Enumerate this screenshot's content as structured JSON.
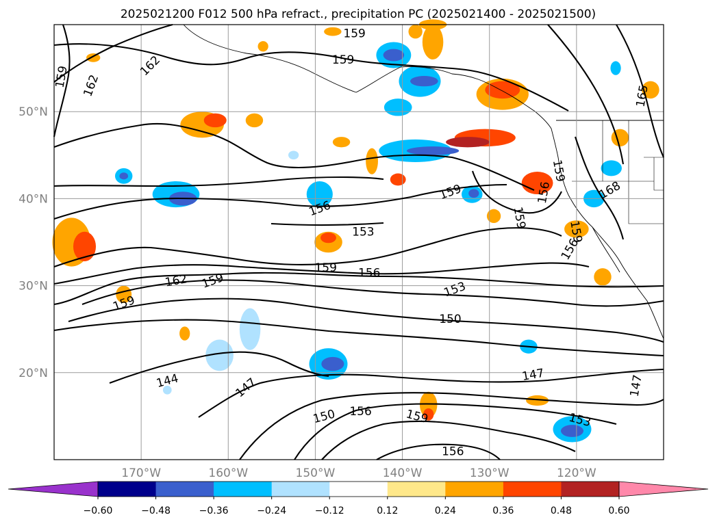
{
  "chart_data": {
    "type": "heatmap",
    "title": "2025021200 F012 500 hPa refract., precipitation PC (2025021400 - 2025021500)",
    "map": {
      "lon_range": [
        -180,
        -110
      ],
      "lat_range": [
        10,
        60
      ],
      "grid": true
    },
    "x_ticks": [
      {
        "value": -170,
        "label": "170°W"
      },
      {
        "value": -160,
        "label": "160°W"
      },
      {
        "value": -150,
        "label": "150°W"
      },
      {
        "value": -140,
        "label": "140°W"
      },
      {
        "value": -130,
        "label": "130°W"
      },
      {
        "value": -120,
        "label": "120°W"
      }
    ],
    "y_ticks": [
      {
        "value": 50,
        "label": "50°N"
      },
      {
        "value": 40,
        "label": "40°N"
      },
      {
        "value": 30,
        "label": "30°N"
      },
      {
        "value": 20,
        "label": "20°N"
      }
    ],
    "colorbar": {
      "orientation": "horizontal",
      "extend": "both",
      "boundaries": [
        -0.6,
        -0.48,
        -0.36,
        -0.24,
        -0.12,
        0.12,
        0.24,
        0.36,
        0.48,
        0.6
      ],
      "tick_labels": [
        "−0.60",
        "−0.48",
        "−0.36",
        "−0.24",
        "−0.12",
        "0.12",
        "0.24",
        "0.36",
        "0.48",
        "0.60"
      ],
      "colors": [
        "#9932cc",
        "#00008b",
        "#3a5fcd",
        "#00bfff",
        "#b0e2ff",
        "#ffffff",
        "#ffe88a",
        "#ffa500",
        "#ff4500",
        "#b22222",
        "#ff88aa"
      ]
    },
    "contour_levels": [
      144,
      147,
      150,
      153,
      156,
      159,
      162,
      165,
      168
    ],
    "contour_labels": [
      {
        "text": "159",
        "lon": -145.5,
        "lat": 59.0,
        "rot": 0
      },
      {
        "text": "159",
        "lon": -146.8,
        "lat": 56.0,
        "rot": 0
      },
      {
        "text": "162",
        "lon": -169.0,
        "lat": 55.3,
        "rot": -45
      },
      {
        "text": "162",
        "lon": -175.8,
        "lat": 53.0,
        "rot": -70
      },
      {
        "text": "159",
        "lon": -179.2,
        "lat": 54.0,
        "rot": -80
      },
      {
        "text": "165",
        "lon": -112.5,
        "lat": 51.8,
        "rot": -80
      },
      {
        "text": "159",
        "lon": -134.5,
        "lat": 40.8,
        "rot": -20
      },
      {
        "text": "156",
        "lon": -149.5,
        "lat": 38.9,
        "rot": -20
      },
      {
        "text": "153",
        "lon": -144.5,
        "lat": 36.2,
        "rot": 0
      },
      {
        "text": "159",
        "lon": -122.0,
        "lat": 43.2,
        "rot": 80
      },
      {
        "text": "156",
        "lon": -123.8,
        "lat": 40.7,
        "rot": -80
      },
      {
        "text": "159",
        "lon": -126.5,
        "lat": 37.8,
        "rot": 80
      },
      {
        "text": "168",
        "lon": -116.2,
        "lat": 41.0,
        "rot": -30
      },
      {
        "text": "159",
        "lon": -120.0,
        "lat": 36.2,
        "rot": 80
      },
      {
        "text": "156",
        "lon": -120.8,
        "lat": 34.2,
        "rot": -60
      },
      {
        "text": "159",
        "lon": -148.8,
        "lat": 32.1,
        "rot": 0
      },
      {
        "text": "156",
        "lon": -143.8,
        "lat": 31.5,
        "rot": 0
      },
      {
        "text": "162",
        "lon": -166.0,
        "lat": 30.6,
        "rot": -10
      },
      {
        "text": "159",
        "lon": -161.8,
        "lat": 30.6,
        "rot": -20
      },
      {
        "text": "159",
        "lon": -172.0,
        "lat": 28.0,
        "rot": -20
      },
      {
        "text": "153",
        "lon": -134.0,
        "lat": 29.6,
        "rot": -20
      },
      {
        "text": "150",
        "lon": -134.5,
        "lat": 26.2,
        "rot": 0
      },
      {
        "text": "144",
        "lon": -167.0,
        "lat": 19.1,
        "rot": -15
      },
      {
        "text": "147",
        "lon": -158.0,
        "lat": 18.3,
        "rot": -40
      },
      {
        "text": "147",
        "lon": -125.0,
        "lat": 19.8,
        "rot": -10
      },
      {
        "text": "147",
        "lon": -113.2,
        "lat": 18.5,
        "rot": -80
      },
      {
        "text": "150",
        "lon": -149.0,
        "lat": 15.0,
        "rot": -15
      },
      {
        "text": "156",
        "lon": -144.8,
        "lat": 15.6,
        "rot": 0
      },
      {
        "text": "159",
        "lon": -138.3,
        "lat": 15.0,
        "rot": 15
      },
      {
        "text": "153",
        "lon": -119.6,
        "lat": 14.6,
        "rot": 15
      },
      {
        "text": "156",
        "lon": -134.2,
        "lat": 11.0,
        "rot": 0
      }
    ]
  }
}
